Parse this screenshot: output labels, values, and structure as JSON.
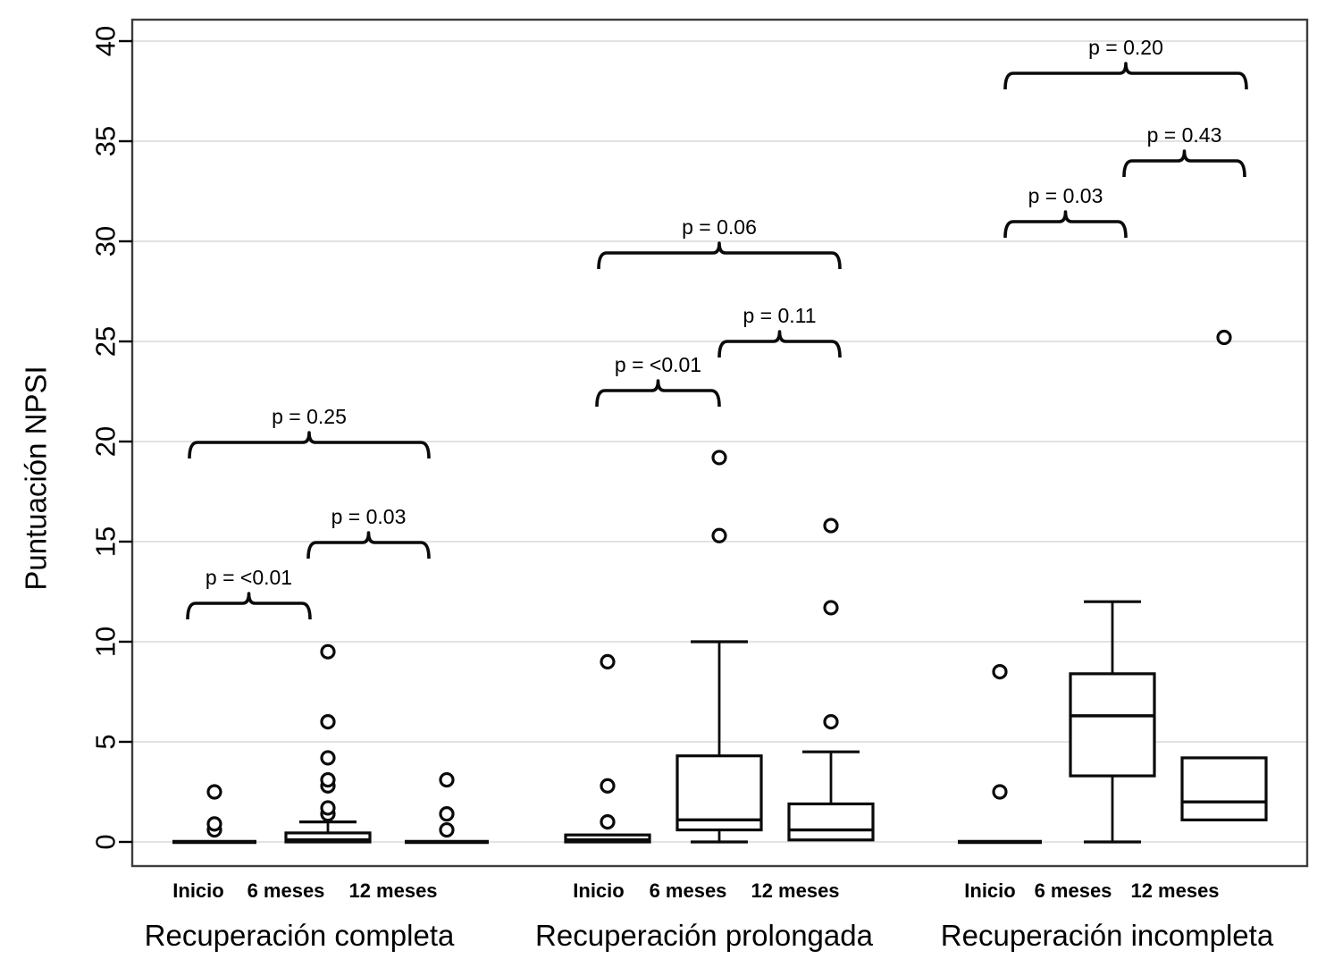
{
  "chart_data": {
    "type": "boxplot",
    "title": "",
    "ylabel": "Puntuación NPSI",
    "ylim": [
      0,
      41.5
    ],
    "yticks": [
      0,
      5,
      10,
      15,
      20,
      25,
      30,
      35,
      40
    ],
    "grid": "horizontal-light-gray",
    "frame": true,
    "groups": [
      {
        "label": "Recuperación completa",
        "boxes": [
          {
            "timepoint": "Inicio",
            "q1": 0,
            "median": 0,
            "q3": 0,
            "whisker_low": null,
            "whisker_high": null,
            "outliers": [
              0.6,
              0.9,
              2.5
            ]
          },
          {
            "timepoint": "6 meses",
            "q1": 0,
            "median": 0.1,
            "q3": 0.45,
            "whisker_low": null,
            "whisker_high": 1.0,
            "outliers": [
              1.4,
              1.7,
              2.8,
              3.1,
              4.2,
              6.0,
              9.5
            ]
          },
          {
            "timepoint": "12 meses",
            "q1": 0,
            "median": 0,
            "q3": 0,
            "whisker_low": null,
            "whisker_high": null,
            "outliers": [
              0.6,
              1.4,
              3.1
            ]
          }
        ],
        "p_values": [
          {
            "comparison": "Inicio vs 6 meses",
            "label": "p = <0.01"
          },
          {
            "comparison": "6 meses vs 12 meses",
            "label": "p = 0.03"
          },
          {
            "comparison": "Inicio vs 12 meses",
            "label": "p = 0.25"
          }
        ]
      },
      {
        "label": "Recuperación prolongada",
        "boxes": [
          {
            "timepoint": "Inicio",
            "q1": 0,
            "median": 0.1,
            "q3": 0.35,
            "whisker_low": null,
            "whisker_high": null,
            "outliers": [
              1.0,
              2.8,
              9.0
            ]
          },
          {
            "timepoint": "6 meses",
            "q1": 0.6,
            "median": 1.1,
            "q3": 4.3,
            "whisker_low": 0,
            "whisker_high": 10.0,
            "outliers": [
              15.3,
              19.2
            ]
          },
          {
            "timepoint": "12 meses",
            "q1": 0.1,
            "median": 0.6,
            "q3": 1.9,
            "whisker_low": null,
            "whisker_high": 4.5,
            "outliers": [
              6.0,
              11.7,
              15.8
            ]
          }
        ],
        "p_values": [
          {
            "comparison": "Inicio vs 6 meses",
            "label": "p = <0.01"
          },
          {
            "comparison": "6 meses vs 12 meses",
            "label": "p = 0.11"
          },
          {
            "comparison": "Inicio vs 12 meses",
            "label": "p = 0.06"
          }
        ]
      },
      {
        "label": "Recuperación incompleta",
        "boxes": [
          {
            "timepoint": "Inicio",
            "q1": 0,
            "median": 0,
            "q3": 0,
            "whisker_low": null,
            "whisker_high": null,
            "outliers": [
              2.5,
              8.5
            ]
          },
          {
            "timepoint": "6 meses",
            "q1": 3.3,
            "median": 6.3,
            "q3": 8.4,
            "whisker_low": 0,
            "whisker_high": 12.0,
            "outliers": []
          },
          {
            "timepoint": "12 meses",
            "q1": 1.1,
            "median": 2.0,
            "q3": 4.2,
            "whisker_low": null,
            "whisker_high": null,
            "outliers": [
              25.2
            ]
          }
        ],
        "p_values": [
          {
            "comparison": "Inicio vs 6 meses",
            "label": "p = 0.03"
          },
          {
            "comparison": "6 meses vs 12 meses",
            "label": "p = 0.43"
          },
          {
            "comparison": "Inicio vs 12 meses",
            "label": "p = 0.20"
          }
        ]
      }
    ],
    "colors": {
      "stroke": "#0a0a0a",
      "gridline": "#d8d8d8",
      "frame": "#3d3d3d",
      "background": "#ffffff"
    }
  }
}
